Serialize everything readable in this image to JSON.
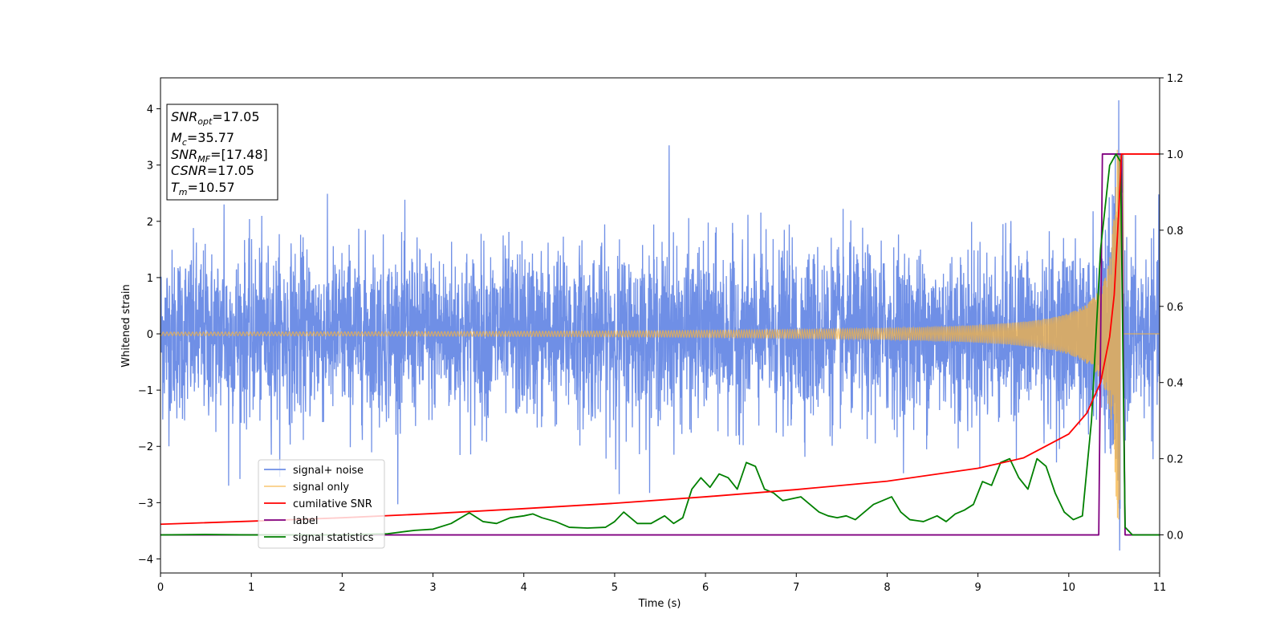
{
  "chart_data": {
    "type": "line",
    "xlabel": "Time (s)",
    "ylabel": "Whitened strain",
    "xlim": [
      0,
      11
    ],
    "ylim_left": [
      -4.25,
      4.55
    ],
    "ylim_right": [
      -0.1,
      1.2
    ],
    "x_ticks": [
      0,
      1,
      2,
      3,
      4,
      5,
      6,
      7,
      8,
      9,
      10,
      11
    ],
    "y_ticks_left": [
      4,
      3,
      2,
      1,
      0,
      -1,
      -2,
      -3,
      -4
    ],
    "y_ticks_left_labels": [
      "4",
      "3",
      "2",
      "1",
      "0",
      "−1",
      "−2",
      "−3",
      "−4"
    ],
    "y_ticks_right": [
      1.2,
      1.0,
      0.8,
      0.6,
      0.4,
      0.2,
      0.0
    ],
    "y_ticks_right_labels": [
      "1.2",
      "1.0",
      "0.8",
      "0.6",
      "0.4",
      "0.2",
      "0.0"
    ],
    "grid": false,
    "legend_position": "lower-left",
    "legend": [
      "signal+ noise",
      "signal only",
      "cumilative SNR",
      "label",
      "signal statistics"
    ],
    "colors": {
      "signal_noise": "#6f8fe6",
      "signal_only": "#f5b342",
      "cumulative_snr": "#ff0000",
      "label": "#800080",
      "signal_statistics": "#008000"
    },
    "annotation": {
      "lines": [
        {
          "prefix": "SNR",
          "sub": "opt",
          "value": "=17.05"
        },
        {
          "prefix": "M",
          "sub": "c",
          "value": "=35.77"
        },
        {
          "prefix": "SNR",
          "sub": "MF",
          "value": "=[17.48]"
        },
        {
          "prefix": "CSNR",
          "sub": "",
          "value": "=17.05"
        },
        {
          "prefix": "T",
          "sub": "m",
          "value": "=10.57"
        }
      ]
    },
    "signal_noise": {
      "axis": "left",
      "noise_sigma": 0.75,
      "peak_max": 4.15,
      "peak_min": -3.85,
      "peak_time": 10.55,
      "notable_peaks": [
        [
          0.7,
          2.3
        ],
        [
          0.75,
          -2.7
        ],
        [
          5.6,
          3.35
        ],
        [
          5.05,
          -2.85
        ],
        [
          6.0,
          -0.4
        ],
        [
          10.55,
          4.15
        ],
        [
          10.56,
          -3.85
        ]
      ]
    },
    "signal_only": {
      "axis": "left",
      "chirp_merger_time": 10.57,
      "peak_amplitude": 3.3,
      "early_amplitude": 0.03
    },
    "cumulative_snr": {
      "axis": "right",
      "x": [
        0,
        1,
        2,
        3,
        4,
        5,
        6,
        7,
        8,
        9,
        9.5,
        10.0,
        10.2,
        10.35,
        10.45,
        10.5,
        10.55,
        10.58,
        11
      ],
      "y": [
        0.028,
        0.036,
        0.045,
        0.056,
        0.069,
        0.083,
        0.1,
        0.119,
        0.141,
        0.175,
        0.202,
        0.265,
        0.32,
        0.4,
        0.52,
        0.63,
        0.85,
        1.0,
        1.0
      ]
    },
    "label": {
      "axis": "right",
      "x": [
        0,
        10.33,
        10.37,
        10.58,
        10.62,
        11
      ],
      "y": [
        0.0,
        0.0,
        1.0,
        1.0,
        0.0,
        0.0
      ]
    },
    "signal_statistics": {
      "axis": "right",
      "x": [
        0,
        0.5,
        1,
        1.5,
        2,
        2.5,
        2.8,
        3.0,
        3.2,
        3.4,
        3.55,
        3.7,
        3.85,
        4.0,
        4.1,
        4.2,
        4.35,
        4.5,
        4.7,
        4.9,
        5.0,
        5.1,
        5.25,
        5.4,
        5.55,
        5.65,
        5.75,
        5.85,
        5.95,
        6.05,
        6.15,
        6.25,
        6.35,
        6.45,
        6.55,
        6.65,
        6.75,
        6.85,
        6.95,
        7.05,
        7.15,
        7.25,
        7.35,
        7.45,
        7.55,
        7.65,
        7.75,
        7.85,
        7.95,
        8.05,
        8.15,
        8.25,
        8.4,
        8.55,
        8.65,
        8.75,
        8.85,
        8.95,
        9.05,
        9.15,
        9.25,
        9.35,
        9.45,
        9.55,
        9.65,
        9.75,
        9.85,
        9.95,
        10.05,
        10.15,
        10.25,
        10.35,
        10.45,
        10.52,
        10.57,
        10.62,
        10.7,
        11
      ],
      "y": [
        0.0,
        0.001,
        0.0,
        0.0,
        0.0,
        0.003,
        0.012,
        0.015,
        0.03,
        0.058,
        0.035,
        0.03,
        0.045,
        0.05,
        0.055,
        0.045,
        0.035,
        0.02,
        0.018,
        0.02,
        0.035,
        0.06,
        0.03,
        0.03,
        0.05,
        0.03,
        0.045,
        0.12,
        0.15,
        0.125,
        0.16,
        0.15,
        0.12,
        0.19,
        0.18,
        0.12,
        0.11,
        0.09,
        0.095,
        0.1,
        0.08,
        0.06,
        0.05,
        0.045,
        0.05,
        0.04,
        0.06,
        0.08,
        0.09,
        0.1,
        0.06,
        0.04,
        0.035,
        0.05,
        0.035,
        0.055,
        0.065,
        0.08,
        0.14,
        0.13,
        0.19,
        0.2,
        0.15,
        0.12,
        0.2,
        0.18,
        0.11,
        0.06,
        0.04,
        0.05,
        0.3,
        0.75,
        0.97,
        1.0,
        0.98,
        0.02,
        0.0,
        0.0
      ]
    }
  }
}
